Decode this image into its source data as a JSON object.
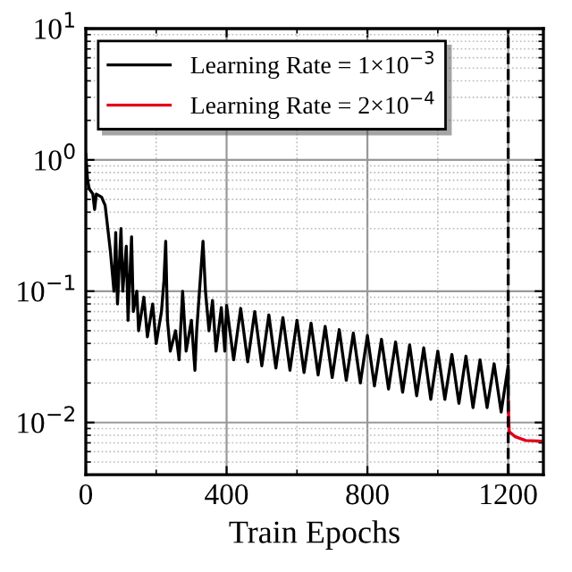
{
  "chart_data": {
    "type": "line",
    "xlabel": "Train Epochs",
    "log": "y",
    "grid": true,
    "legend": "top left",
    "line_style": "solid",
    "marker": "none",
    "xlim": [
      0,
      1300
    ],
    "xticks": [
      0,
      400,
      800,
      1200
    ],
    "ylim": [
      0.004,
      10
    ],
    "yticks": [
      {
        "value": 10,
        "label": "10$^{1}$"
      },
      {
        "value": 1,
        "label": "10$^{0}$"
      },
      {
        "value": 0.1,
        "label": "10$^{−1}$"
      },
      {
        "value": 0.01,
        "label": "10$^{−2}$"
      }
    ],
    "ref_lines": [
      {
        "axis": "x",
        "value": 1200,
        "color": "#000000",
        "line_style": "dashed"
      }
    ],
    "series": [
      {
        "name": "Learning Rate = 1×10$^{−3}$",
        "color": "#000000",
        "x": [
          0,
          5,
          10,
          20,
          25,
          30,
          45,
          55,
          70,
          80,
          85,
          90,
          100,
          105,
          115,
          120,
          130,
          135,
          145,
          150,
          165,
          175,
          190,
          200,
          215,
          222,
          227,
          232,
          240,
          255,
          265,
          275,
          285,
          300,
          310,
          315,
          325,
          333,
          340,
          350,
          360,
          370,
          385,
          395,
          400,
          420,
          440,
          460,
          480,
          500,
          520,
          540,
          560,
          580,
          600,
          620,
          640,
          660,
          680,
          700,
          720,
          740,
          760,
          780,
          800,
          820,
          840,
          860,
          880,
          900,
          920,
          940,
          960,
          980,
          1000,
          1020,
          1040,
          1060,
          1080,
          1100,
          1120,
          1140,
          1160,
          1180,
          1200,
          1200
        ],
        "values": [
          1.1,
          0.7,
          0.6,
          0.55,
          0.42,
          0.55,
          0.52,
          0.45,
          0.2,
          0.1,
          0.28,
          0.08,
          0.3,
          0.1,
          0.22,
          0.06,
          0.26,
          0.07,
          0.1,
          0.05,
          0.09,
          0.045,
          0.08,
          0.04,
          0.07,
          0.12,
          0.24,
          0.06,
          0.035,
          0.05,
          0.03,
          0.1,
          0.035,
          0.06,
          0.025,
          0.05,
          0.12,
          0.24,
          0.1,
          0.05,
          0.085,
          0.035,
          0.075,
          0.035,
          0.078,
          0.03,
          0.074,
          0.029,
          0.07,
          0.027,
          0.066,
          0.026,
          0.063,
          0.025,
          0.06,
          0.024,
          0.057,
          0.023,
          0.054,
          0.022,
          0.051,
          0.021,
          0.048,
          0.02,
          0.046,
          0.019,
          0.043,
          0.018,
          0.041,
          0.017,
          0.039,
          0.016,
          0.037,
          0.015,
          0.035,
          0.015,
          0.033,
          0.014,
          0.032,
          0.013,
          0.03,
          0.013,
          0.028,
          0.012,
          0.027,
          0.012
        ]
      },
      {
        "name": "Learning Rate = 2×10$^{−4}$",
        "color": "#e0001b",
        "x": [
          1200,
          1203,
          1220,
          1250,
          1300
        ],
        "values": [
          0.0145,
          0.0085,
          0.0078,
          0.0073,
          0.0072
        ]
      }
    ]
  }
}
